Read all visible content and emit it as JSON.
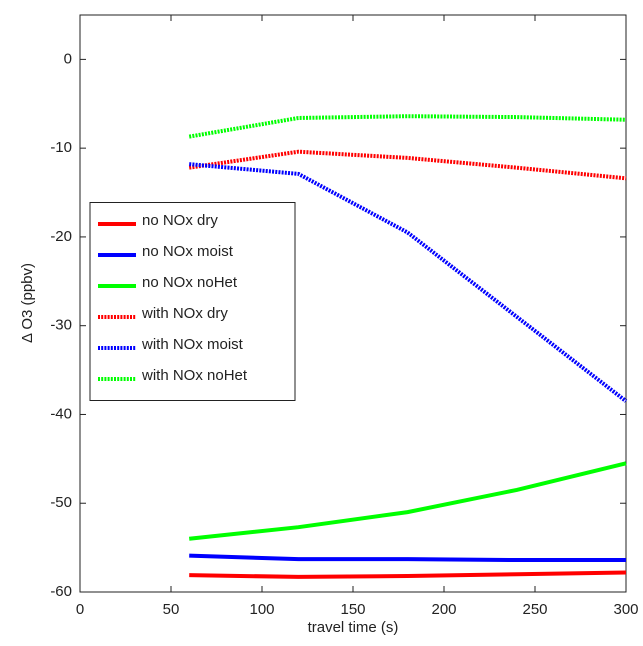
{
  "chart_data": {
    "type": "line",
    "xlabel": "travel time (s)",
    "ylabel": "Δ O3 (ppbv)",
    "x": [
      60,
      120,
      180,
      240,
      300
    ],
    "series": [
      {
        "name": "no NOx dry",
        "color": "#ff0000",
        "line_style": "solid",
        "values": [
          -58.1,
          -58.3,
          -58.2,
          -58.0,
          -57.8
        ]
      },
      {
        "name": "no NOx moist",
        "color": "#0000ff",
        "line_style": "solid",
        "values": [
          -55.9,
          -56.3,
          -56.3,
          -56.4,
          -56.4
        ]
      },
      {
        "name": "no NOx noHet",
        "color": "#00ff00",
        "line_style": "solid",
        "values": [
          -54.0,
          -52.7,
          -51.0,
          -48.5,
          -45.5
        ]
      },
      {
        "name": "with NOx dry",
        "color": "#ff0000",
        "line_style": "dotted",
        "values": [
          -12.2,
          -10.4,
          -11.1,
          -12.2,
          -13.4
        ]
      },
      {
        "name": "with NOx moist",
        "color": "#0000ff",
        "line_style": "dotted",
        "values": [
          -11.8,
          -12.9,
          -19.5,
          -29.0,
          -38.5
        ]
      },
      {
        "name": "with NOx noHet",
        "color": "#00ff00",
        "line_style": "dotted",
        "values": [
          -8.7,
          -6.6,
          -6.4,
          -6.5,
          -6.8
        ]
      }
    ],
    "xlim": [
      0,
      300
    ],
    "xticks": [
      0,
      50,
      100,
      150,
      200,
      250,
      300
    ],
    "ylim": [
      -60,
      5
    ],
    "yticks": [
      -60,
      -50,
      -40,
      -30,
      -20,
      -10,
      0
    ],
    "grid": false,
    "legend": "left"
  }
}
